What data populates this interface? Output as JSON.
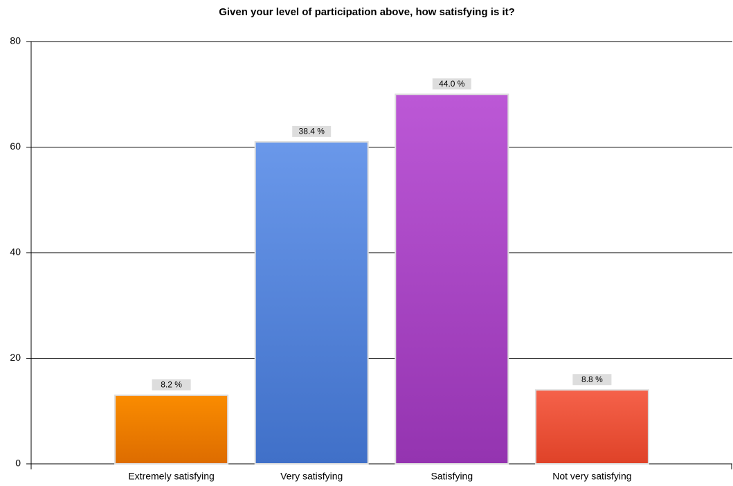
{
  "chart_data": {
    "type": "bar",
    "title": "Given your level of participation above, how satisfying is it?",
    "categories": [
      "Extremely satisfying",
      "Very satisfying",
      "Satisfying",
      "Not very satisfying"
    ],
    "values": [
      13,
      61,
      70,
      14
    ],
    "data_labels": [
      {
        "value": 8.2,
        "label": "8.2 %"
      },
      {
        "value": 38.4,
        "label": "38.4 %"
      },
      {
        "value": 44.0,
        "label": "44.0 %"
      },
      {
        "value": 8.8,
        "label": "8.8 %"
      }
    ],
    "colors": [
      [
        "#fa8c00",
        "#dd6c00"
      ],
      [
        "#6a98ea",
        "#4070c8"
      ],
      [
        "#bc58d6",
        "#9434b0"
      ],
      [
        "#f5624a",
        "#df4228"
      ]
    ],
    "ylim": [
      0,
      80
    ],
    "yticks": [
      0,
      20,
      40,
      60,
      80
    ],
    "grid": true
  }
}
